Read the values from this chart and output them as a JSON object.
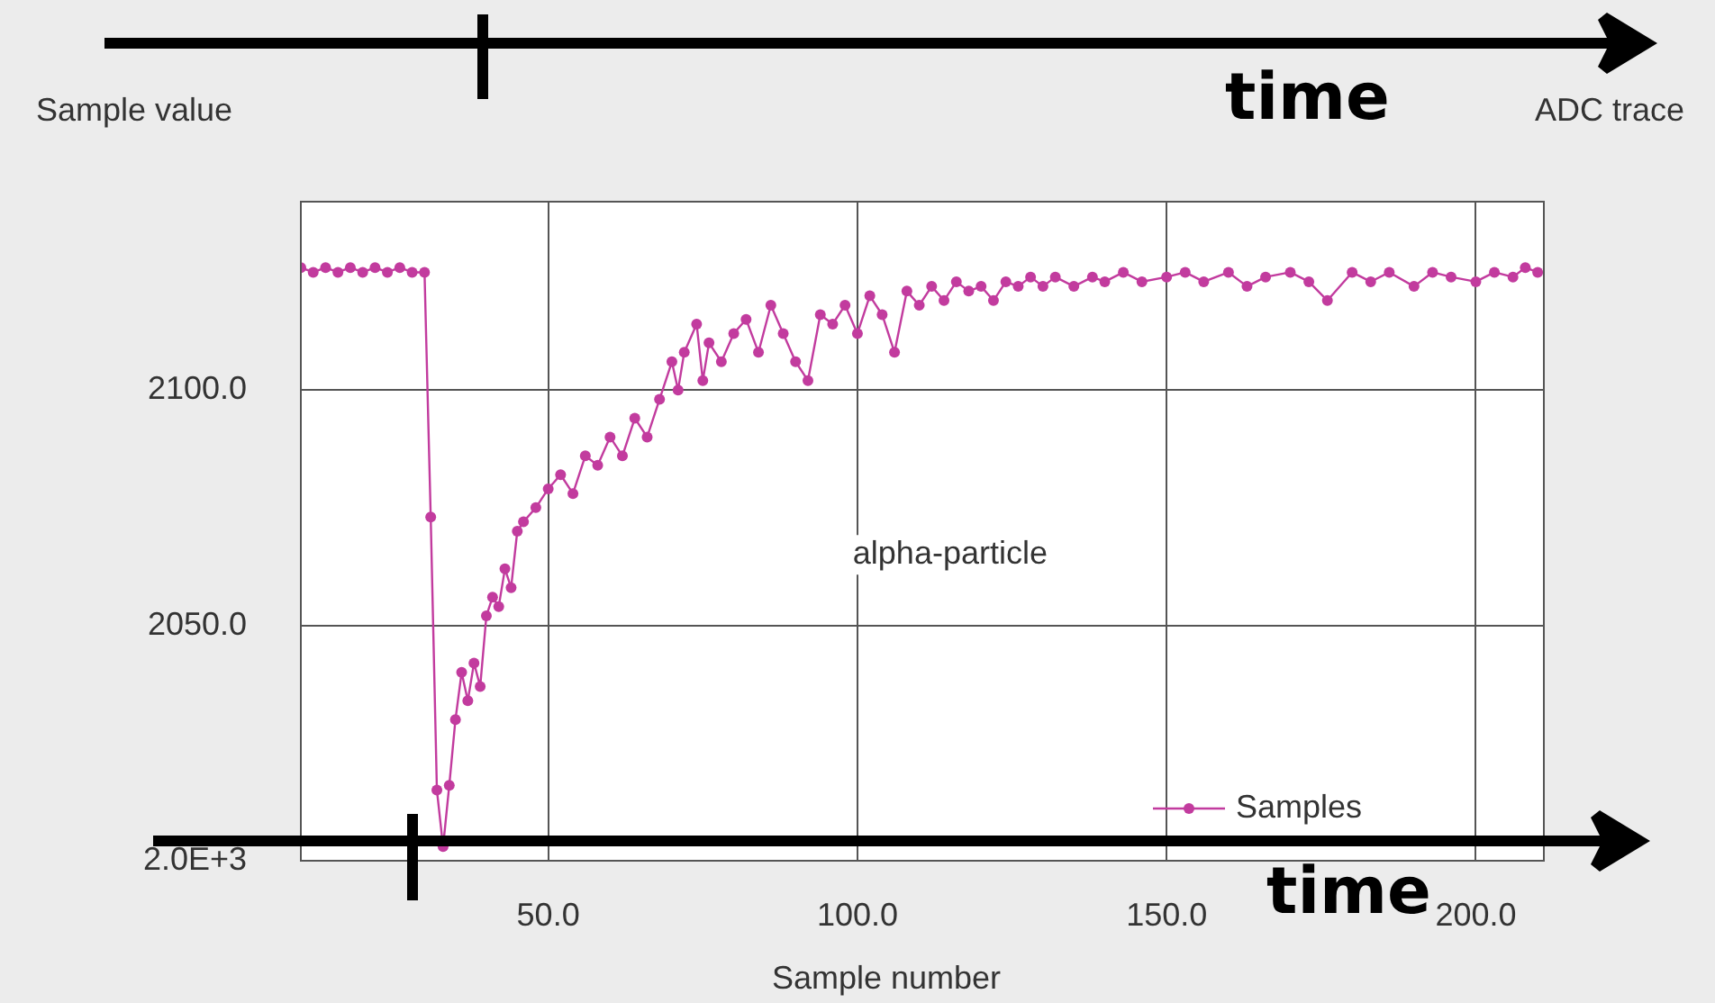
{
  "chart_data": {
    "type": "line",
    "title": "ADC trace",
    "xlabel": "Sample number",
    "ylabel": "Sample value",
    "annotations": [
      "alpha-particle",
      "time",
      "time"
    ],
    "series": [
      {
        "name": "Samples",
        "color": "#c23b9e",
        "x": [
          10,
          12,
          14,
          16,
          18,
          20,
          22,
          24,
          26,
          28,
          30,
          31,
          32,
          33,
          34,
          35,
          36,
          37,
          38,
          39,
          40,
          41,
          42,
          43,
          44,
          45,
          46,
          48,
          50,
          52,
          54,
          56,
          58,
          60,
          62,
          64,
          66,
          68,
          70,
          71,
          72,
          74,
          75,
          76,
          78,
          80,
          82,
          84,
          86,
          88,
          90,
          92,
          94,
          96,
          98,
          100,
          102,
          104,
          106,
          108,
          110,
          112,
          114,
          116,
          118,
          120,
          122,
          124,
          126,
          128,
          130,
          132,
          135,
          138,
          140,
          143,
          146,
          150,
          153,
          156,
          160,
          163,
          166,
          170,
          173,
          176,
          180,
          183,
          186,
          190,
          193,
          196,
          200,
          203,
          206,
          208,
          210
        ],
        "values": [
          2126,
          2125,
          2126,
          2125,
          2126,
          2125,
          2126,
          2125,
          2126,
          2125,
          2125,
          2073,
          2015,
          2003,
          2016,
          2030,
          2040,
          2034,
          2042,
          2037,
          2052,
          2056,
          2054,
          2062,
          2058,
          2070,
          2072,
          2075,
          2079,
          2082,
          2078,
          2086,
          2084,
          2090,
          2086,
          2094,
          2090,
          2098,
          2106,
          2100,
          2108,
          2114,
          2102,
          2110,
          2106,
          2112,
          2115,
          2108,
          2118,
          2112,
          2106,
          2102,
          2116,
          2114,
          2118,
          2112,
          2120,
          2116,
          2108,
          2121,
          2118,
          2122,
          2119,
          2123,
          2121,
          2122,
          2119,
          2123,
          2122,
          2124,
          2122,
          2124,
          2122,
          2124,
          2123,
          2125,
          2123,
          2124,
          2125,
          2123,
          2125,
          2122,
          2124,
          2125,
          2123,
          2119,
          2125,
          2123,
          2125,
          2122,
          2125,
          2124,
          2123,
          2125,
          2124,
          2126,
          2125
        ]
      }
    ],
    "xlim": [
      10,
      211
    ],
    "xticks": [
      {
        "value": 50,
        "label": "50.0"
      },
      {
        "value": 100,
        "label": "100.0"
      },
      {
        "value": 150,
        "label": "150.0"
      },
      {
        "value": 200,
        "label": "200.0"
      }
    ],
    "ylim": [
      2000,
      2140
    ],
    "yticks": [
      {
        "value": 2000,
        "label": "2.0E+3"
      },
      {
        "value": 2050,
        "label": "2050.0"
      },
      {
        "value": 2100,
        "label": "2100.0"
      }
    ],
    "grid": true,
    "legend": "bottom right",
    "marker": "circle",
    "line_style": "solid"
  }
}
